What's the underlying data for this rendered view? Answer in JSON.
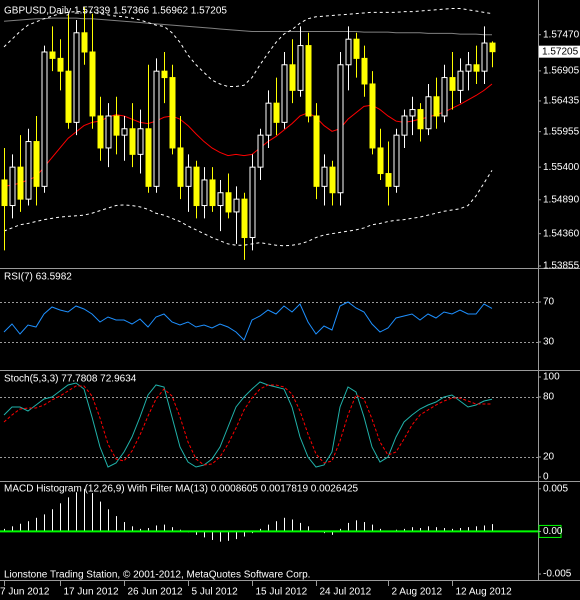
{
  "chart_data": [
    {
      "type": "candlestick",
      "title": "GBPUSD,Daily  1.57339 1.57366 1.56962 1.57205",
      "categories": [
        "7 Jun 2012",
        null,
        null,
        null,
        null,
        null,
        null,
        "17 Jun 2012",
        null,
        null,
        null,
        null,
        null,
        null,
        null,
        "26 Jun 2012",
        null,
        null,
        null,
        null,
        null,
        null,
        null,
        "5 Jul 2012",
        null,
        null,
        null,
        null,
        null,
        null,
        null,
        "15 Jul 2012",
        null,
        null,
        null,
        null,
        null,
        null,
        null,
        "24 Jul 2012",
        null,
        null,
        null,
        null,
        null,
        null,
        null,
        null,
        "2 Aug 2012",
        null,
        null,
        null,
        null,
        null,
        null,
        null,
        "12 Aug 2012",
        null,
        null,
        null,
        null,
        null
      ],
      "open": [
        1.552,
        1.548,
        1.554,
        1.549,
        1.558,
        1.551,
        1.572,
        1.571,
        1.569,
        1.561,
        1.575,
        1.572,
        1.562,
        1.557,
        1.562,
        1.559,
        1.56,
        1.556,
        1.56,
        1.551,
        1.569,
        1.568,
        1.557,
        1.551,
        1.554,
        1.548,
        1.552,
        1.548,
        1.55,
        1.547,
        1.549,
        1.543,
        1.554,
        1.559,
        1.564,
        1.561,
        1.57,
        1.566,
        1.573,
        1.562,
        1.551,
        1.554,
        1.55,
        1.57,
        1.574,
        1.571,
        1.567,
        1.557,
        1.553,
        1.551,
        1.559,
        1.562,
        1.563,
        1.56,
        1.565,
        1.562,
        1.568,
        1.566,
        1.569,
        1.57,
        1.569,
        1.57339
      ],
      "high": [
        1.557,
        1.556,
        1.559,
        1.56,
        1.562,
        1.573,
        1.576,
        1.574,
        1.578,
        1.577,
        1.579,
        1.578,
        1.565,
        1.564,
        1.565,
        1.562,
        1.564,
        1.563,
        1.57,
        1.571,
        1.572,
        1.57,
        1.562,
        1.556,
        1.555,
        1.554,
        1.554,
        1.552,
        1.553,
        1.551,
        1.55,
        1.556,
        1.56,
        1.566,
        1.568,
        1.572,
        1.574,
        1.576,
        1.575,
        1.564,
        1.556,
        1.555,
        1.572,
        1.576,
        1.575,
        1.573,
        1.569,
        1.56,
        1.558,
        1.56,
        1.563,
        1.565,
        1.564,
        1.567,
        1.568,
        1.57,
        1.572,
        1.571,
        1.572,
        1.573,
        1.576,
        1.57366
      ],
      "low": [
        1.541,
        1.546,
        1.547,
        1.548,
        1.548,
        1.55,
        1.569,
        1.566,
        1.56,
        1.559,
        1.57,
        1.56,
        1.555,
        1.554,
        1.556,
        1.555,
        1.554,
        1.553,
        1.55,
        1.55,
        1.564,
        1.556,
        1.549,
        1.547,
        1.546,
        1.546,
        1.547,
        1.544,
        1.546,
        1.542,
        1.5395,
        1.541,
        1.552,
        1.557,
        1.559,
        1.56,
        1.564,
        1.565,
        1.561,
        1.549,
        1.548,
        1.548,
        1.548,
        1.566,
        1.568,
        1.565,
        1.556,
        1.552,
        1.548,
        1.55,
        1.557,
        1.559,
        1.558,
        1.559,
        1.56,
        1.561,
        1.563,
        1.564,
        1.566,
        1.567,
        1.567,
        1.56962
      ],
      "close": [
        1.548,
        1.554,
        1.549,
        1.558,
        1.551,
        1.572,
        1.571,
        1.569,
        1.561,
        1.575,
        1.572,
        1.562,
        1.557,
        1.562,
        1.559,
        1.56,
        1.556,
        1.56,
        1.551,
        1.569,
        1.568,
        1.557,
        1.551,
        1.554,
        1.548,
        1.552,
        1.548,
        1.55,
        1.547,
        1.549,
        1.543,
        1.554,
        1.559,
        1.564,
        1.561,
        1.57,
        1.566,
        1.573,
        1.562,
        1.551,
        1.554,
        1.55,
        1.57,
        1.574,
        1.571,
        1.567,
        1.557,
        1.553,
        1.551,
        1.559,
        1.562,
        1.563,
        1.56,
        1.565,
        1.562,
        1.568,
        1.566,
        1.569,
        1.57,
        1.569,
        1.5734,
        1.57205
      ],
      "up_color": "#ffffff",
      "down_color": "#ffff00",
      "background": "#000000",
      "series": [
        {
          "color": "#808080",
          "dash": false,
          "values": [
            1.5768,
            1.5769,
            1.577,
            1.5771,
            1.5772,
            1.5772,
            1.5773,
            1.5773,
            1.5773,
            1.5773,
            1.5772,
            1.5772,
            1.5771,
            1.577,
            1.5769,
            1.5768,
            1.5767,
            1.5766,
            1.5765,
            1.5764,
            1.5763,
            1.5762,
            1.5761,
            1.576,
            1.5759,
            1.5758,
            1.5757,
            1.5756,
            1.5755,
            1.5754,
            1.5753,
            1.5752,
            1.5752,
            1.5752,
            1.5752,
            1.5752,
            1.5752,
            1.5752,
            1.5752,
            1.5752,
            1.5752,
            1.5752,
            1.5752,
            1.5752,
            1.5752,
            1.5751,
            1.5751,
            1.5751,
            1.5751,
            1.575,
            1.575,
            1.575,
            1.575,
            1.5749,
            1.5749,
            1.5749,
            1.5749,
            1.5748,
            1.5748,
            1.5748,
            1.5747,
            1.5747
          ]
        },
        {
          "color": "#ff0000",
          "dash": false,
          "values": [
            1.551,
            1.5512,
            1.5515,
            1.552,
            1.5525,
            1.554,
            1.5555,
            1.557,
            1.5585,
            1.5595,
            1.5605,
            1.561,
            1.5612,
            1.5618,
            1.5622,
            1.562,
            1.5615,
            1.561,
            1.5608,
            1.5612,
            1.5618,
            1.562,
            1.5615,
            1.5605,
            1.5592,
            1.558,
            1.557,
            1.5563,
            1.5558,
            1.556,
            1.5558,
            1.556,
            1.557,
            1.558,
            1.5588,
            1.5598,
            1.5608,
            1.562,
            1.5625,
            1.5618,
            1.5605,
            1.5596,
            1.56,
            1.5615,
            1.5625,
            1.5635,
            1.5637,
            1.563,
            1.562,
            1.5612,
            1.561,
            1.5612,
            1.5615,
            1.5618,
            1.5622,
            1.5626,
            1.5632,
            1.5638,
            1.5645,
            1.5652,
            1.566,
            1.567
          ]
        },
        {
          "color": "#ffffff",
          "dash": true,
          "values": [
            1.5728,
            1.574,
            1.5752,
            1.5762,
            1.5767,
            1.5772,
            1.5776,
            1.578,
            1.5782,
            1.5783,
            1.5783,
            1.5782,
            1.578,
            1.5778,
            1.5776,
            1.5775,
            1.5773,
            1.577,
            1.5766,
            1.5762,
            1.576,
            1.575,
            1.5735,
            1.5715,
            1.57,
            1.5688,
            1.5676,
            1.567,
            1.5666,
            1.5666,
            1.5668,
            1.568,
            1.57,
            1.5718,
            1.5735,
            1.5748,
            1.5755,
            1.5765,
            1.5772,
            1.5775,
            1.5776,
            1.5777,
            1.5778,
            1.5779,
            1.578,
            1.5781,
            1.5782,
            1.5782,
            1.5782,
            1.5782,
            1.5783,
            1.5783,
            1.5784,
            1.5785,
            1.5786,
            1.5787,
            1.5788,
            1.5788,
            1.5786,
            1.5784,
            1.5782,
            1.578
          ]
        },
        {
          "color": "#ffffff",
          "dash": true,
          "values": [
            1.544,
            1.5445,
            1.545,
            1.5452,
            1.5455,
            1.5458,
            1.546,
            1.5462,
            1.5463,
            1.5464,
            1.5465,
            1.5468,
            1.5472,
            1.5476,
            1.548,
            1.5481,
            1.548,
            1.5478,
            1.5474,
            1.5468,
            1.5465,
            1.546,
            1.5455,
            1.5448,
            1.5442,
            1.5436,
            1.543,
            1.5425,
            1.542,
            1.5418,
            1.5418,
            1.542,
            1.5422,
            1.542,
            1.5418,
            1.5417,
            1.5418,
            1.542,
            1.5424,
            1.543,
            1.5434,
            1.5436,
            1.5438,
            1.544,
            1.5442,
            1.5445,
            1.545,
            1.5452,
            1.5455,
            1.5457,
            1.5458,
            1.546,
            1.5462,
            1.5465,
            1.5468,
            1.5471,
            1.5473,
            1.5475,
            1.548,
            1.5495,
            1.5515,
            1.5535
          ]
        }
      ],
      "ylim": [
        1.53855,
        1.5795
      ],
      "yticks": [
        {
          "value": 1.5747,
          "label": "1.57470"
        },
        1.56905,
        1.56435,
        1.55955,
        {
          "value": 1.554,
          "label": "1.55400"
        },
        {
          "value": 1.5489,
          "label": "1.54890"
        },
        {
          "value": 1.5436,
          "label": "1.54360"
        },
        1.53855
      ]
    },
    {
      "type": "line",
      "title": "RSI(7) 63.5982",
      "series": [
        {
          "color": "#1e90ff",
          "dash": false,
          "values": [
            40,
            48,
            38,
            47,
            45,
            58,
            65,
            62,
            60,
            66,
            63,
            58,
            50,
            55,
            52,
            52,
            48,
            53,
            45,
            55,
            58,
            50,
            47,
            50,
            45,
            47,
            44,
            48,
            45,
            40,
            32,
            52,
            56,
            62,
            58,
            66,
            60,
            68,
            50,
            38,
            46,
            42,
            66,
            70,
            64,
            60,
            48,
            40,
            44,
            54,
            56,
            58,
            52,
            58,
            54,
            60,
            58,
            62,
            58,
            58,
            68,
            63.5982
          ]
        }
      ],
      "ylim": [
        6,
        102
      ],
      "yticks": [
        30,
        70
      ],
      "levels": [
        30,
        70
      ]
    },
    {
      "type": "line",
      "title": "Stoch(5,3,3) 77.7808 72.9634",
      "series": [
        {
          "color": "#20b2aa",
          "dash": false,
          "values": [
            62,
            70,
            70,
            66,
            72,
            78,
            80,
            86,
            92,
            94,
            88,
            60,
            30,
            10,
            14,
            25,
            40,
            60,
            82,
            92,
            90,
            60,
            30,
            15,
            10,
            12,
            18,
            30,
            50,
            70,
            80,
            88,
            95,
            92,
            90,
            88,
            70,
            40,
            20,
            10,
            12,
            25,
            70,
            90,
            85,
            60,
            30,
            15,
            20,
            40,
            55,
            62,
            68,
            72,
            75,
            80,
            82,
            76,
            70,
            72,
            76,
            77.7808
          ]
        },
        {
          "color": "#ff0000",
          "dash": true,
          "values": [
            55,
            62,
            68,
            69,
            69,
            72,
            77,
            81,
            86,
            91,
            91,
            81,
            59,
            33,
            18,
            16,
            26,
            42,
            61,
            78,
            88,
            81,
            60,
            35,
            18,
            12,
            13,
            20,
            33,
            49,
            67,
            79,
            88,
            92,
            92,
            90,
            83,
            66,
            43,
            23,
            14,
            16,
            36,
            62,
            82,
            78,
            58,
            35,
            22,
            25,
            38,
            52,
            62,
            67,
            72,
            76,
            79,
            79,
            76,
            73,
            73,
            72.9634
          ]
        }
      ],
      "ylim": [
        -3,
        105
      ],
      "yticks": [
        0,
        20,
        80,
        100
      ],
      "levels": [
        20,
        80
      ]
    },
    {
      "type": "bar",
      "title": "MACD Histogram (12,26,9) With Filter MA(13) 0.0008605 0.0017819 0.0026425",
      "values": [
        0.0003,
        0.0006,
        0.0009,
        0.0012,
        0.0016,
        0.002,
        0.0026,
        0.0033,
        0.004,
        0.0046,
        0.005,
        0.0045,
        0.0035,
        0.0026,
        0.0018,
        0.0011,
        0.0006,
        0.0003,
        0.0004,
        0.0007,
        0.0008,
        0.0005,
        0.0002,
        -0.0001,
        -0.0004,
        -0.0007,
        -0.001,
        -0.0012,
        -0.0011,
        -0.0009,
        -0.0006,
        -0.0002,
        0.0003,
        0.0008,
        0.0012,
        0.0016,
        0.0014,
        0.001,
        0.0006,
        0.0001,
        -0.0002,
        -0.0004,
        0.0003,
        0.001,
        0.0013,
        0.0011,
        0.0008,
        0.0003,
        0.0,
        0.0002,
        0.0003,
        0.0005,
        0.0004,
        0.0006,
        0.0005,
        0.0004,
        0.0003,
        0.0004,
        0.0005,
        0.0006,
        0.0007,
        0.0008605
      ],
      "color": "#ffffff",
      "zero_line_color": "#00ff00",
      "ylim": [
        -0.0057,
        0.0058
      ],
      "yticks": [
        0.005,
        {
          "value": 0,
          "label": "0.00"
        },
        -0.005
      ],
      "footer": "Lionstone Trading Station, © 2001-2012, MetaQuotes Software Corp."
    }
  ]
}
